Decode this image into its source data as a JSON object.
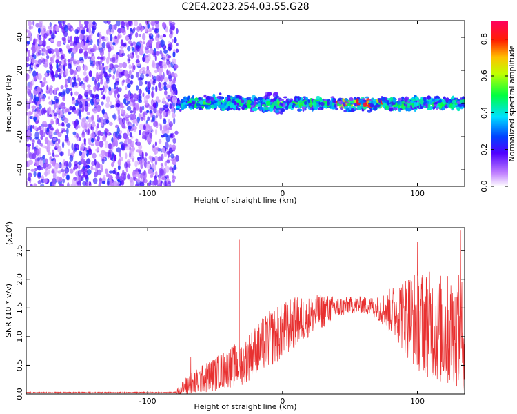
{
  "title": "C2E4.2023.254.03.55.G28",
  "chart_data": [
    {
      "type": "heatmap",
      "name": "spectrogram",
      "xlabel": "Height of straight line (km)",
      "ylabel": "Frequency (Hz)",
      "xlim": [
        -190,
        135
      ],
      "ylim": [
        -50,
        50
      ],
      "xticks": [
        -100,
        0,
        100
      ],
      "yticks": [
        -40,
        -20,
        0,
        20,
        40
      ],
      "noise_region_km": [
        -190,
        -78
      ],
      "signal_region_km": [
        -78,
        135
      ],
      "signal_peak_km": [
        40,
        75
      ],
      "signal_center_hz": 0,
      "colorbar": {
        "label": "Normalized spectral amplitude",
        "range": [
          0.0,
          0.9
        ],
        "ticks": [
          0.0,
          0.2,
          0.4,
          0.6,
          0.8
        ],
        "tick_labels": [
          "0.0",
          "0.2",
          "0.4",
          "0.6",
          "0.8"
        ]
      }
    },
    {
      "type": "line",
      "name": "snr",
      "xlabel": "Height of straight line (km)",
      "ylabel": "SNR (10 * v/v)",
      "exponent_label": "(x10",
      "exponent_sup": "4",
      "exponent_close": ")",
      "xlim": [
        -190,
        135
      ],
      "ylim": [
        0,
        2.9
      ],
      "xticks": [
        -100,
        0,
        100
      ],
      "yticks": [
        0.0,
        0.5,
        1.0,
        1.5,
        2.0,
        2.5
      ],
      "ytick_labels": [
        "0.0",
        "0.5",
        "1.0",
        "1.5",
        "2.0",
        "2.5"
      ],
      "color": "#e83030",
      "envelope": {
        "x": [
          -190,
          -80,
          -70,
          -60,
          -50,
          -40,
          -30,
          -20,
          -10,
          0,
          10,
          20,
          30,
          40,
          50,
          60,
          70,
          80,
          90,
          100,
          110,
          120,
          130,
          135
        ],
        "mean": [
          0.02,
          0.02,
          0.15,
          0.25,
          0.35,
          0.45,
          0.55,
          0.75,
          0.95,
          1.1,
          1.25,
          1.35,
          1.45,
          1.5,
          1.55,
          1.55,
          1.5,
          1.45,
          1.4,
          1.3,
          1.2,
          1.1,
          1.1,
          1.0
        ],
        "spread": [
          0.01,
          0.01,
          0.2,
          0.25,
          0.3,
          0.35,
          0.4,
          0.45,
          0.5,
          0.5,
          0.45,
          0.35,
          0.3,
          0.2,
          0.15,
          0.15,
          0.2,
          0.4,
          0.7,
          0.9,
          0.95,
          1.0,
          1.0,
          1.0
        ]
      },
      "spikes": [
        {
          "x": -32,
          "y": 2.69
        },
        {
          "x": 100,
          "y": 2.65
        },
        {
          "x": 132,
          "y": 2.85
        },
        {
          "x": -68,
          "y": 0.65
        }
      ]
    }
  ]
}
